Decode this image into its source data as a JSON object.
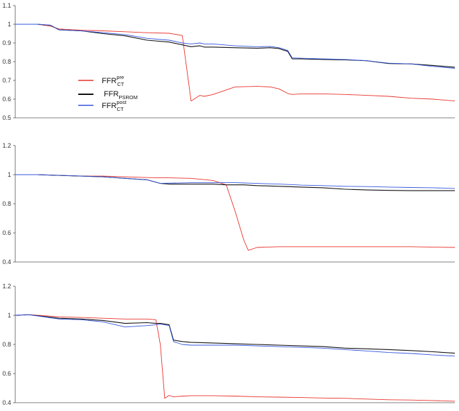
{
  "chart_data": [
    {
      "type": "line",
      "ylim": [
        0.5,
        1.1
      ],
      "yticks": [
        "0.5",
        "0.6",
        "0.7",
        "0.8",
        "0.9",
        "1",
        "1.1"
      ],
      "x": [
        0,
        5,
        8,
        10,
        15,
        20,
        25,
        30,
        35,
        38,
        40,
        42,
        43,
        45,
        50,
        55,
        58,
        60,
        62,
        63,
        65,
        70,
        75,
        80,
        85,
        90,
        95,
        100
      ],
      "series": [
        {
          "name": "FFR pre CT",
          "color": "#e8322b",
          "values": [
            1.0,
            1.0,
            0.99,
            0.975,
            0.968,
            0.965,
            0.96,
            0.955,
            0.952,
            0.94,
            0.59,
            0.62,
            0.615,
            0.625,
            0.665,
            0.668,
            0.665,
            0.655,
            0.63,
            0.625,
            0.628,
            0.628,
            0.625,
            0.62,
            0.615,
            0.605,
            0.6,
            0.59
          ]
        },
        {
          "name": "FFR PSROM",
          "color": "#111111",
          "values": [
            1.0,
            1.0,
            0.995,
            0.97,
            0.965,
            0.95,
            0.938,
            0.915,
            0.905,
            0.89,
            0.88,
            0.885,
            0.878,
            0.878,
            0.875,
            0.872,
            0.875,
            0.87,
            0.855,
            0.815,
            0.815,
            0.812,
            0.81,
            0.805,
            0.79,
            0.788,
            0.78,
            0.77
          ]
        },
        {
          "name": "FFR post CT",
          "color": "#3355dd",
          "values": [
            1.0,
            1.0,
            0.995,
            0.97,
            0.965,
            0.955,
            0.945,
            0.925,
            0.915,
            0.9,
            0.895,
            0.9,
            0.895,
            0.895,
            0.885,
            0.88,
            0.882,
            0.875,
            0.86,
            0.82,
            0.818,
            0.815,
            0.812,
            0.805,
            0.792,
            0.788,
            0.775,
            0.765
          ]
        }
      ]
    },
    {
      "type": "line",
      "ylim": [
        0.4,
        1.2
      ],
      "yticks": [
        "0.4",
        "0.6",
        "0.8",
        "1",
        "1.2"
      ],
      "x": [
        0,
        5,
        10,
        15,
        20,
        25,
        30,
        33,
        35,
        40,
        45,
        48,
        50,
        52,
        53,
        55,
        60,
        65,
        70,
        75,
        80,
        85,
        90,
        95,
        100
      ],
      "series": [
        {
          "name": "FFR pre CT",
          "color": "#e8322b",
          "values": [
            1.0,
            1.0,
            0.995,
            0.99,
            0.99,
            0.985,
            0.98,
            0.978,
            0.978,
            0.975,
            0.96,
            0.93,
            0.75,
            0.55,
            0.48,
            0.5,
            0.505,
            0.505,
            0.505,
            0.505,
            0.505,
            0.505,
            0.505,
            0.502,
            0.5
          ]
        },
        {
          "name": "FFR PSROM",
          "color": "#111111",
          "values": [
            1.0,
            1.0,
            0.995,
            0.99,
            0.985,
            0.975,
            0.965,
            0.94,
            0.935,
            0.935,
            0.935,
            0.93,
            0.93,
            0.93,
            0.928,
            0.925,
            0.92,
            0.915,
            0.91,
            0.9,
            0.895,
            0.892,
            0.89,
            0.89,
            0.89
          ]
        },
        {
          "name": "FFR post CT",
          "color": "#3355dd",
          "values": [
            1.0,
            1.0,
            0.995,
            0.99,
            0.985,
            0.975,
            0.965,
            0.94,
            0.942,
            0.945,
            0.945,
            0.945,
            0.945,
            0.943,
            0.942,
            0.94,
            0.935,
            0.928,
            0.925,
            0.92,
            0.918,
            0.915,
            0.912,
            0.91,
            0.905
          ]
        }
      ]
    },
    {
      "type": "line",
      "ylim": [
        0.4,
        1.2
      ],
      "yticks": [
        "0.4",
        "0.6",
        "0.8",
        "1",
        "1.2"
      ],
      "x": [
        0,
        3,
        10,
        15,
        20,
        25,
        30,
        32,
        33,
        34,
        35,
        36,
        38,
        40,
        45,
        50,
        55,
        60,
        65,
        70,
        75,
        80,
        85,
        90,
        95,
        100
      ],
      "series": [
        {
          "name": "FFR pre CT",
          "color": "#e8322b",
          "values": [
            1.0,
            1.005,
            0.99,
            0.985,
            0.98,
            0.975,
            0.975,
            0.97,
            0.8,
            0.43,
            0.45,
            0.44,
            0.445,
            0.448,
            0.448,
            0.445,
            0.44,
            0.438,
            0.435,
            0.432,
            0.43,
            0.425,
            0.42,
            0.418,
            0.415,
            0.41
          ]
        },
        {
          "name": "FFR PSROM",
          "color": "#111111",
          "values": [
            1.0,
            1.005,
            0.98,
            0.975,
            0.965,
            0.945,
            0.95,
            0.945,
            0.945,
            0.94,
            0.935,
            0.83,
            0.82,
            0.815,
            0.81,
            0.805,
            0.8,
            0.795,
            0.79,
            0.785,
            0.775,
            0.77,
            0.765,
            0.758,
            0.75,
            0.74
          ]
        },
        {
          "name": "FFR post CT",
          "color": "#3355dd",
          "values": [
            1.0,
            1.005,
            0.975,
            0.97,
            0.955,
            0.92,
            0.93,
            0.935,
            0.94,
            0.935,
            0.93,
            0.82,
            0.8,
            0.795,
            0.795,
            0.795,
            0.79,
            0.785,
            0.78,
            0.775,
            0.765,
            0.755,
            0.745,
            0.738,
            0.728,
            0.72
          ]
        }
      ]
    }
  ],
  "legend": {
    "items": [
      {
        "color": "#e8322b",
        "main": "FFR",
        "sup": "pre",
        "sub": "CT"
      },
      {
        "color": "#111111",
        "main": "FFR",
        "sup": "",
        "sub": "PSROM"
      },
      {
        "color": "#3355dd",
        "main": "FFR",
        "sup": "post",
        "sub": "CT"
      }
    ]
  }
}
